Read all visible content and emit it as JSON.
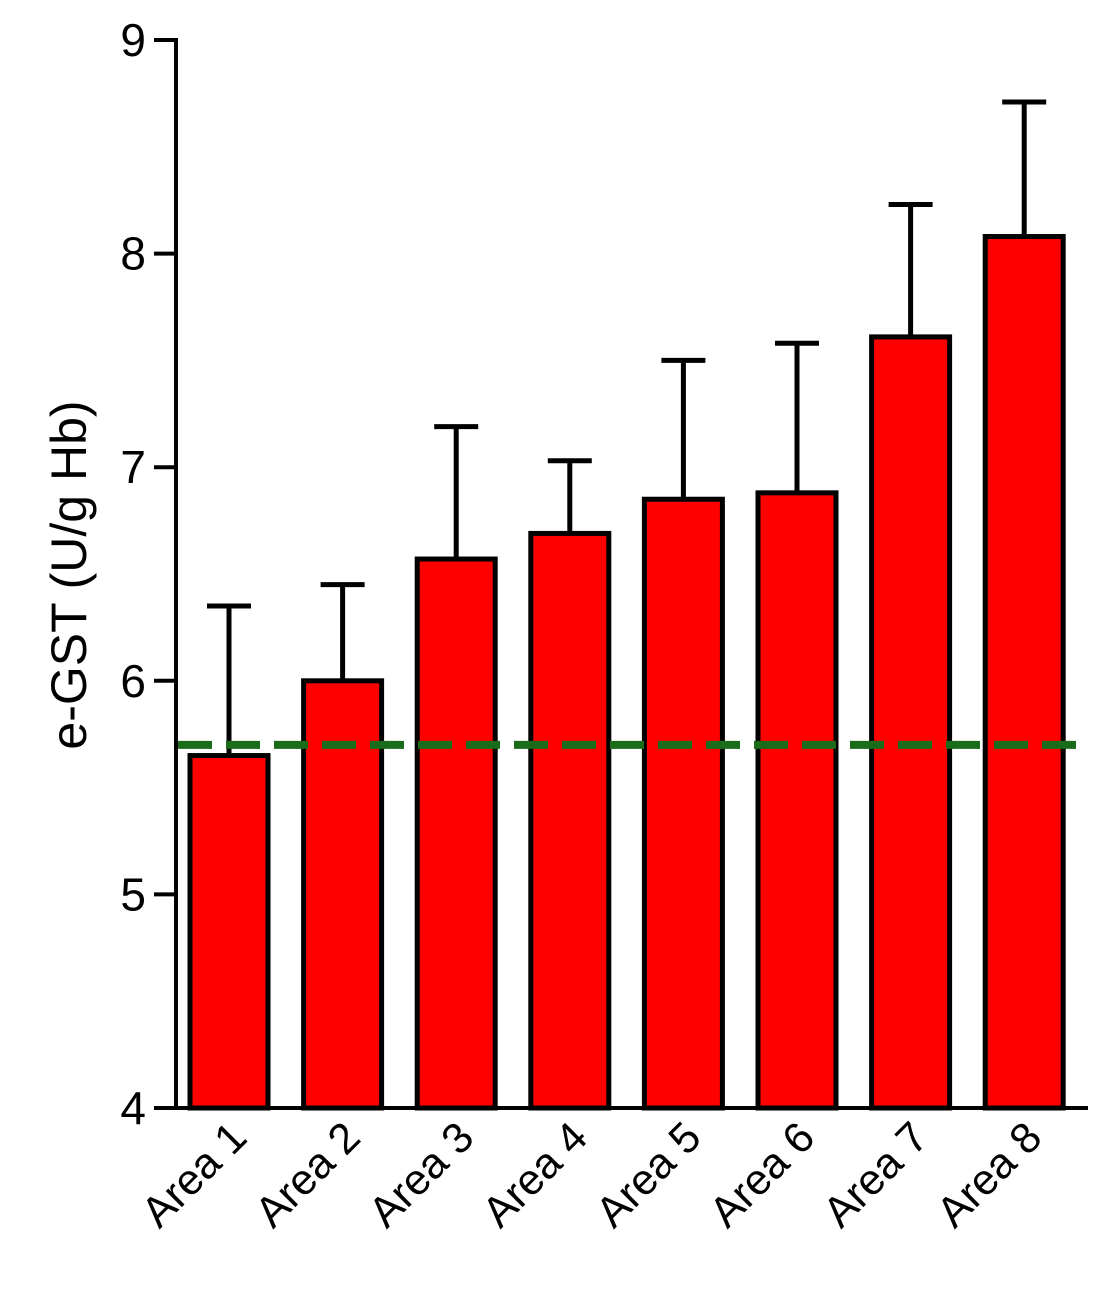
{
  "chart_data": {
    "type": "bar",
    "title": "",
    "xlabel": "",
    "ylabel": "e-GST  (U/g Hb)",
    "ylim": [
      4,
      9
    ],
    "yticks": [
      "4",
      "5",
      "6",
      "7",
      "8",
      "9"
    ],
    "categories": [
      "Area 1",
      "Area 2",
      "Area 3",
      "Area 4",
      "Area 5",
      "Area 6",
      "Area 7",
      "Area 8"
    ],
    "values": [
      5.65,
      6.0,
      6.57,
      6.69,
      6.85,
      6.88,
      7.61,
      8.08
    ],
    "error_upper": [
      0.7,
      0.45,
      0.62,
      0.34,
      0.65,
      0.7,
      0.62,
      0.63
    ],
    "reference_line": {
      "y": 5.7,
      "style": "dashed"
    },
    "grid": false,
    "colors": {
      "bar_fill": "#ff0000",
      "bar_stroke": "#000000",
      "error_bar": "#000000",
      "axis": "#000000",
      "reference_line": "#1a6b1a"
    }
  }
}
